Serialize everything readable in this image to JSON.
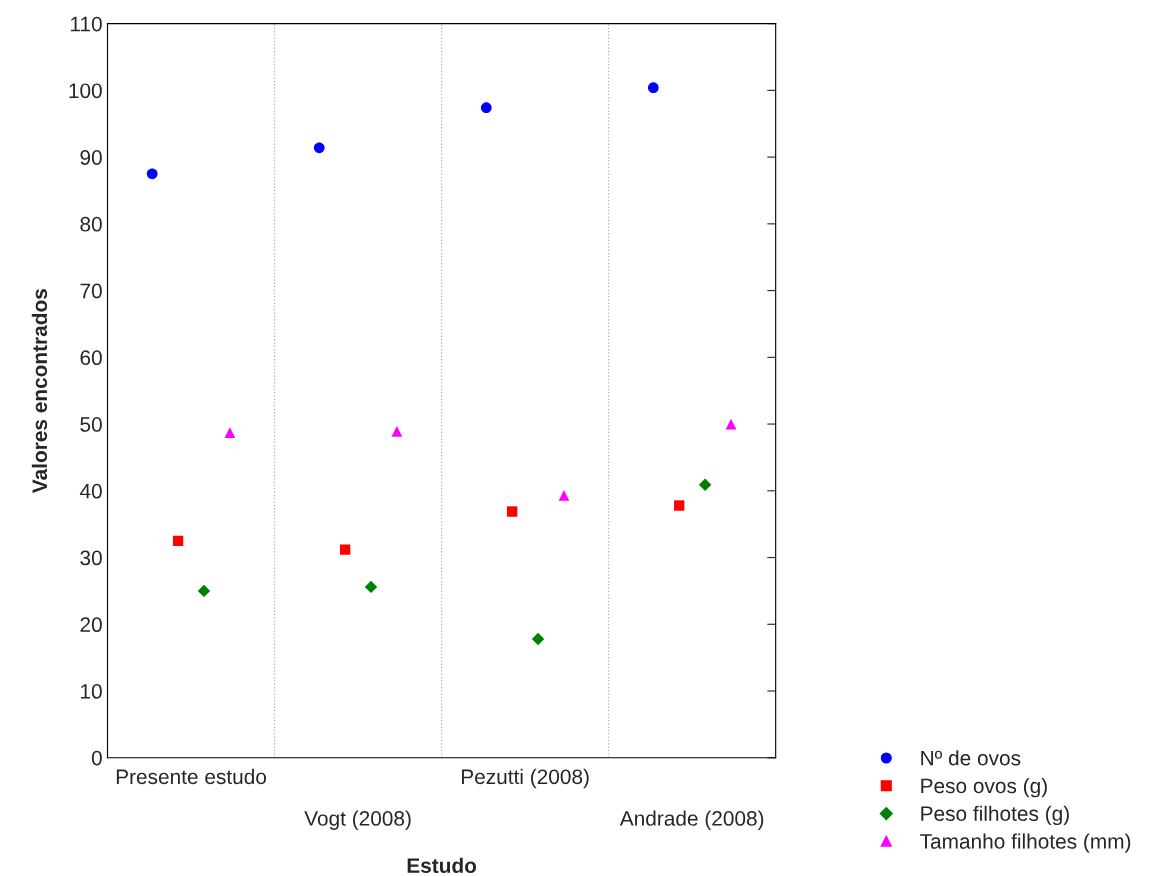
{
  "chart_data": {
    "type": "scatter",
    "xlabel": "Estudo",
    "ylabel": "Valores encontrados",
    "categories": [
      "Presente estudo",
      "Vogt (2008)",
      "Pezutti (2008)",
      "Andrade (2008)"
    ],
    "series": [
      {
        "name": "Nº de ovos",
        "color": "#0000ff",
        "marker": "circle",
        "values": [
          87.5,
          91.4,
          97.4,
          100.4
        ]
      },
      {
        "name": "Peso ovos (g)",
        "color": "#ff0000",
        "marker": "square",
        "values": [
          32.5,
          31.2,
          36.9,
          37.8
        ]
      },
      {
        "name": "Peso filhotes (g)",
        "color": "#008000",
        "marker": "diamond",
        "values": [
          25.0,
          25.6,
          17.8,
          40.9
        ]
      },
      {
        "name": "Tamanho filhotes (mm)",
        "color": "#ff00ff",
        "marker": "triangle",
        "values": [
          48.7,
          48.9,
          39.3,
          50.0
        ]
      }
    ],
    "ylim": [
      0,
      110
    ],
    "yticks": [
      0,
      10,
      20,
      30,
      40,
      50,
      60,
      70,
      80,
      90,
      100,
      110
    ],
    "grid": "x",
    "legend": "bottom right"
  }
}
